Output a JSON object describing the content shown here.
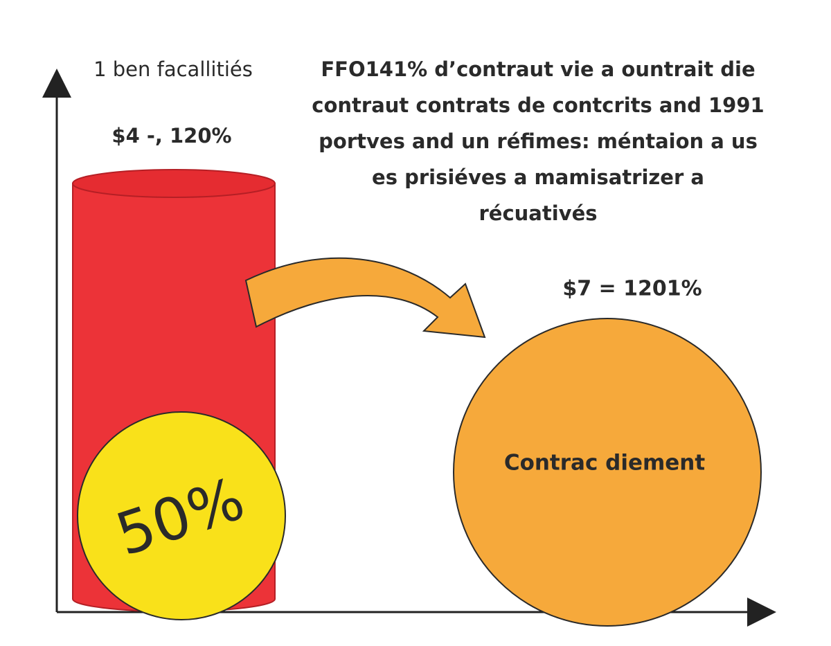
{
  "left_bar": {
    "label": "1 ben facallitiés",
    "value_text": "$4 -, 120%",
    "badge": "50%"
  },
  "description": {
    "lines": [
      "FFO141% d’contraut vie a ountrait die",
      "contraut contrats de contcrits and 1991",
      "portves and un réfimes: méntaion a us",
      "es prisiéves a mamisatrizer a",
      "récuativés"
    ]
  },
  "right_circle": {
    "value_text": "$7 = 1201%",
    "label": "Contrac diement"
  }
}
